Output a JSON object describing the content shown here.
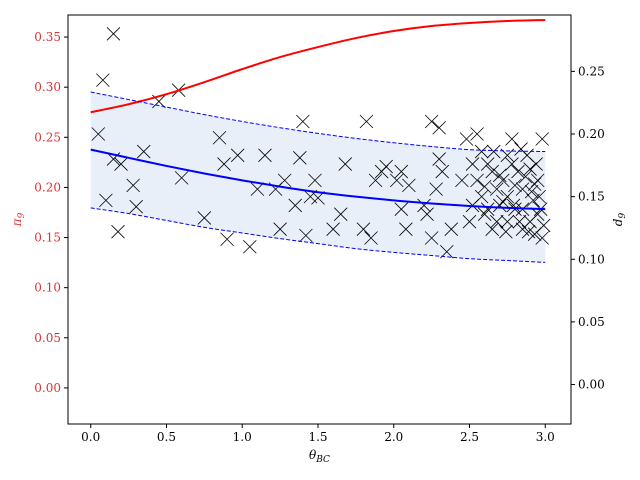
{
  "chart_data": {
    "type": "line",
    "x_label": "θ",
    "x_label_sub": "BC",
    "y_left_label": "π",
    "y_left_label_sub": "9",
    "y_right_label": "d",
    "y_right_label_sub": "9",
    "x_range": [
      -0.15,
      3.17
    ],
    "y_left_range": [
      -0.036,
      0.372
    ],
    "y_right_range": [
      -0.0315,
      0.295
    ],
    "x_ticks": [
      {
        "value": 0.0,
        "label": "0.0"
      },
      {
        "value": 0.5,
        "label": "0.5"
      },
      {
        "value": 1.0,
        "label": "1.0"
      },
      {
        "value": 1.5,
        "label": "1.5"
      },
      {
        "value": 2.0,
        "label": "2.0"
      },
      {
        "value": 2.5,
        "label": "2.5"
      },
      {
        "value": 3.0,
        "label": "3.0"
      }
    ],
    "y_left_ticks": [
      {
        "value": 0.0,
        "label": "0.00"
      },
      {
        "value": 0.05,
        "label": "0.05"
      },
      {
        "value": 0.1,
        "label": "0.10"
      },
      {
        "value": 0.15,
        "label": "0.15"
      },
      {
        "value": 0.2,
        "label": "0.20"
      },
      {
        "value": 0.25,
        "label": "0.25"
      },
      {
        "value": 0.3,
        "label": "0.30"
      },
      {
        "value": 0.35,
        "label": "0.35"
      }
    ],
    "y_right_ticks": [
      {
        "value": 0.0,
        "label": "0.00"
      },
      {
        "value": 0.05,
        "label": "0.05"
      },
      {
        "value": 0.1,
        "label": "0.10"
      },
      {
        "value": 0.15,
        "label": "0.15"
      },
      {
        "value": 0.2,
        "label": "0.20"
      },
      {
        "value": 0.25,
        "label": "0.25"
      }
    ],
    "colors": {
      "pi_curve": "#ff0000",
      "d_curve": "#0000ff",
      "band_fill": "#e8eff8",
      "markers": "#000000",
      "left_axis_text": "#e03030"
    },
    "series": [
      {
        "axis": "left",
        "style": "solid",
        "x": [
          0.0,
          0.25,
          0.5,
          0.75,
          1.0,
          1.25,
          1.5,
          1.75,
          2.0,
          2.25,
          2.5,
          2.75,
          3.0
        ],
        "y": [
          0.275,
          0.283,
          0.293,
          0.305,
          0.318,
          0.33,
          0.34,
          0.349,
          0.356,
          0.361,
          0.364,
          0.366,
          0.367
        ]
      },
      {
        "axis": "right",
        "style": "solid",
        "x": [
          0.0,
          0.25,
          0.5,
          0.75,
          1.0,
          1.25,
          1.5,
          1.75,
          2.0,
          2.25,
          2.5,
          2.75,
          3.0
        ],
        "y": [
          0.1875,
          0.181,
          0.1745,
          0.1685,
          0.163,
          0.158,
          0.1535,
          0.15,
          0.147,
          0.1445,
          0.1425,
          0.141,
          0.14
        ]
      },
      {
        "axis": "right",
        "style": "dashed",
        "x": [
          0.0,
          0.25,
          0.5,
          0.75,
          1.0,
          1.25,
          1.5,
          1.75,
          2.0,
          2.25,
          2.5,
          2.75,
          3.0
        ],
        "y": [
          0.2335,
          0.2275,
          0.2215,
          0.2155,
          0.21,
          0.205,
          0.2005,
          0.1965,
          0.193,
          0.19,
          0.1875,
          0.1865,
          0.186
        ]
      },
      {
        "axis": "right",
        "style": "dashed",
        "x": [
          0.0,
          0.25,
          0.5,
          0.75,
          1.0,
          1.25,
          1.5,
          1.75,
          2.0,
          2.25,
          2.5,
          2.75,
          3.0
        ],
        "y": [
          0.141,
          0.1365,
          0.131,
          0.1255,
          0.121,
          0.1165,
          0.1125,
          0.1085,
          0.1055,
          0.103,
          0.1005,
          0.099,
          0.0975
        ]
      }
    ],
    "scatter": {
      "axis": "right",
      "marker": "x",
      "points": [
        [
          0.05,
          0.2
        ],
        [
          0.08,
          0.243
        ],
        [
          0.1,
          0.147
        ],
        [
          0.15,
          0.28
        ],
        [
          0.15,
          0.18
        ],
        [
          0.18,
          0.122
        ],
        [
          0.2,
          0.176
        ],
        [
          0.28,
          0.159
        ],
        [
          0.3,
          0.142
        ],
        [
          0.35,
          0.186
        ],
        [
          0.45,
          0.226
        ],
        [
          0.58,
          0.235
        ],
        [
          0.6,
          0.165
        ],
        [
          0.75,
          0.133
        ],
        [
          0.85,
          0.197
        ],
        [
          0.88,
          0.176
        ],
        [
          0.9,
          0.116
        ],
        [
          0.97,
          0.183
        ],
        [
          1.05,
          0.11
        ],
        [
          1.1,
          0.156
        ],
        [
          1.15,
          0.183
        ],
        [
          1.22,
          0.156
        ],
        [
          1.25,
          0.124
        ],
        [
          1.28,
          0.163
        ],
        [
          1.35,
          0.143
        ],
        [
          1.38,
          0.181
        ],
        [
          1.4,
          0.21
        ],
        [
          1.42,
          0.119
        ],
        [
          1.45,
          0.15
        ],
        [
          1.48,
          0.163
        ],
        [
          1.5,
          0.149
        ],
        [
          1.6,
          0.124
        ],
        [
          1.65,
          0.136
        ],
        [
          1.68,
          0.176
        ],
        [
          1.8,
          0.124
        ],
        [
          1.82,
          0.21
        ],
        [
          1.85,
          0.117
        ],
        [
          1.88,
          0.163
        ],
        [
          1.92,
          0.17
        ],
        [
          1.95,
          0.174
        ],
        [
          2.02,
          0.163
        ],
        [
          2.05,
          0.14
        ],
        [
          2.05,
          0.17
        ],
        [
          2.08,
          0.124
        ],
        [
          2.1,
          0.159
        ],
        [
          2.2,
          0.143
        ],
        [
          2.22,
          0.136
        ],
        [
          2.25,
          0.21
        ],
        [
          2.25,
          0.117
        ],
        [
          2.28,
          0.156
        ],
        [
          2.3,
          0.205
        ],
        [
          2.3,
          0.18
        ],
        [
          2.32,
          0.17
        ],
        [
          2.35,
          0.106
        ],
        [
          2.38,
          0.124
        ],
        [
          2.45,
          0.163
        ],
        [
          2.48,
          0.196
        ],
        [
          2.5,
          0.13
        ],
        [
          2.52,
          0.143
        ],
        [
          2.55,
          0.2
        ],
        [
          2.55,
          0.163
        ],
        [
          2.58,
          0.15
        ],
        [
          2.6,
          0.136
        ],
        [
          2.62,
          0.176
        ],
        [
          2.65,
          0.17
        ],
        [
          2.65,
          0.124
        ],
        [
          2.68,
          0.156
        ],
        [
          2.7,
          0.143
        ],
        [
          2.72,
          0.163
        ],
        [
          2.75,
          0.13
        ],
        [
          2.75,
          0.15
        ],
        [
          2.78,
          0.196
        ],
        [
          2.8,
          0.14
        ],
        [
          2.82,
          0.17
        ],
        [
          2.85,
          0.124
        ],
        [
          2.85,
          0.156
        ],
        [
          2.88,
          0.183
        ],
        [
          2.9,
          0.13
        ],
        [
          2.92,
          0.147
        ],
        [
          2.95,
          0.136
        ],
        [
          2.95,
          0.163
        ],
        [
          2.98,
          0.196
        ],
        [
          2.98,
          0.117
        ],
        [
          2.58,
          0.186
        ],
        [
          2.62,
          0.14
        ],
        [
          2.7,
          0.167
        ],
        [
          2.75,
          0.183
        ],
        [
          2.8,
          0.159
        ],
        [
          2.85,
          0.14
        ],
        [
          2.9,
          0.172
        ],
        [
          2.93,
          0.12
        ],
        [
          2.96,
          0.15
        ],
        [
          2.52,
          0.176
        ],
        [
          2.68,
          0.13
        ],
        [
          2.72,
          0.146
        ],
        [
          2.78,
          0.176
        ],
        [
          2.83,
          0.13
        ],
        [
          2.87,
          0.166
        ],
        [
          2.91,
          0.154
        ],
        [
          2.94,
          0.176
        ],
        [
          2.97,
          0.14
        ],
        [
          2.6,
          0.158
        ],
        [
          2.66,
          0.186
        ],
        [
          2.74,
          0.122
        ],
        [
          2.79,
          0.143
        ],
        [
          2.84,
          0.188
        ],
        [
          2.89,
          0.122
        ],
        [
          2.93,
          0.16
        ],
        [
          2.99,
          0.127
        ]
      ]
    }
  }
}
